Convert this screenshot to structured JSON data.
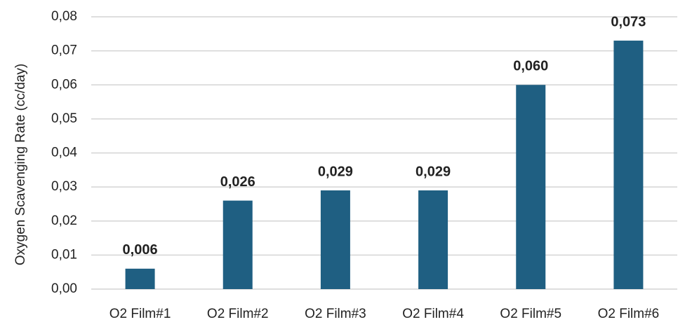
{
  "chart_data": {
    "type": "bar",
    "y_label": "Oxygen Scavenging Rate (cc/day)",
    "categories": [
      "O2 Film#1",
      "O2 Film#2",
      "O2 Film#3",
      "O2 Film#4",
      "O2 Film#5",
      "O2 Film#6"
    ],
    "values": [
      0.006,
      0.026,
      0.029,
      0.029,
      0.06,
      0.073
    ],
    "value_labels": [
      "0,006",
      "0,026",
      "0,029",
      "0,029",
      "0,060",
      "0,073"
    ],
    "color": "#1f5f82",
    "ylim": [
      0,
      0.08
    ],
    "yticks": [
      {
        "value": 0,
        "label": "0,00"
      },
      {
        "value": 0.01,
        "label": "0,01"
      },
      {
        "value": 0.02,
        "label": "0,02"
      },
      {
        "value": 0.03,
        "label": "0,03"
      },
      {
        "value": 0.04,
        "label": "0,04"
      },
      {
        "value": 0.05,
        "label": "0,05"
      },
      {
        "value": 0.06,
        "label": "0,06"
      },
      {
        "value": 0.07,
        "label": "0,07"
      },
      {
        "value": 0.08,
        "label": "0,08"
      }
    ],
    "grid": true
  }
}
